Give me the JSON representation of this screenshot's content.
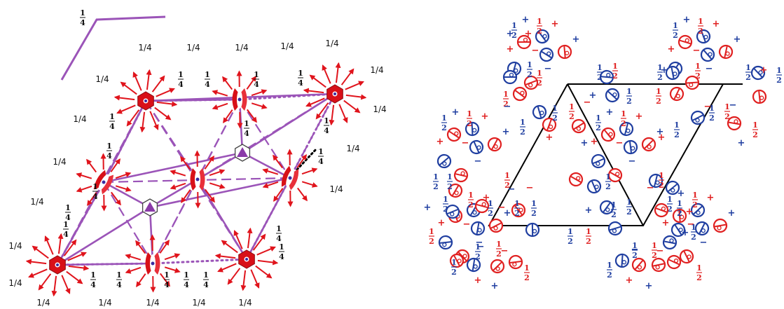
{
  "left_panel": {
    "slash_label": "1/4",
    "stacked_label": {
      "num": "1",
      "den": "4"
    }
  },
  "right_panel": {
    "half": {
      "num": "1",
      "den": "2"
    },
    "plus": "+",
    "minus": "−",
    "colors": {
      "red": "#e02020",
      "blue": "#1f3ea0"
    }
  },
  "colors": {
    "purple": "#9b54b8",
    "red": "#e0141c",
    "black": "#000000"
  }
}
